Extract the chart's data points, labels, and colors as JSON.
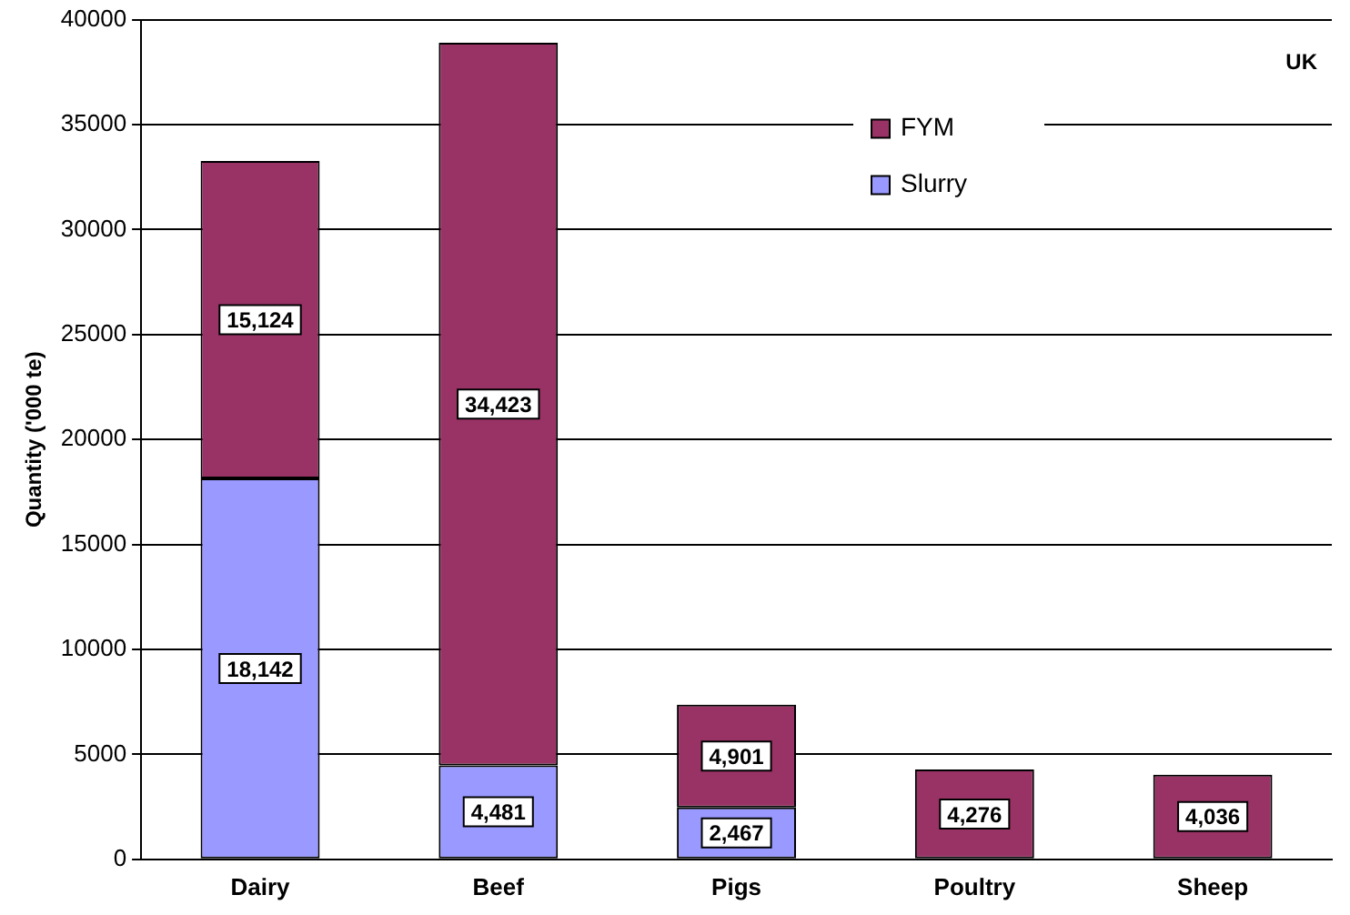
{
  "chart_data": {
    "type": "bar",
    "stacked": true,
    "ylabel": "Quantity ('000 te)",
    "categories": [
      "Dairy",
      "Beef",
      "Pigs",
      "Poultry",
      "Sheep"
    ],
    "series": [
      {
        "name": "Slurry",
        "color": "#9999ff",
        "values": [
          18142,
          4481,
          2467,
          null,
          null
        ],
        "value_labels": [
          "18,142",
          "4,481",
          "2,467",
          null,
          null
        ]
      },
      {
        "name": "FYM",
        "color": "#993366",
        "values": [
          15124,
          34423,
          4901,
          4276,
          4036
        ],
        "value_labels": [
          "15,124",
          "34,423",
          "4,901",
          "4,276",
          "4,036"
        ]
      }
    ],
    "ylim": [
      0,
      40000
    ],
    "yticks": [
      0,
      5000,
      10000,
      15000,
      20000,
      25000,
      30000,
      35000,
      40000
    ],
    "grid": "y",
    "legend": "top right",
    "annotations": [
      "UK"
    ]
  }
}
